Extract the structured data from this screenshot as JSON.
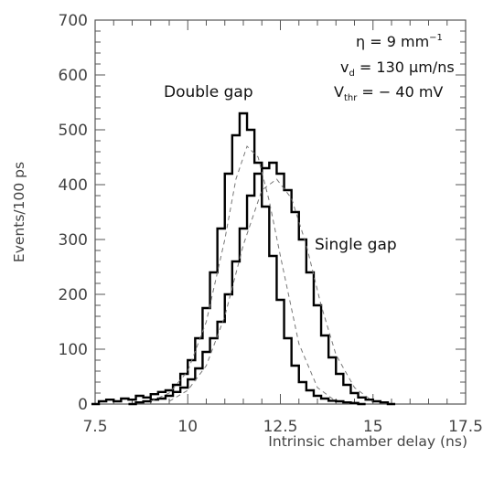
{
  "chart_data": {
    "type": "line",
    "xlabel": "Intrinsic chamber delay (ns)",
    "ylabel": "Events/100 ps",
    "xlim": [
      7.5,
      17.5
    ],
    "ylim": [
      0,
      700
    ],
    "x_ticks": [
      "7.5",
      "10",
      "12.5",
      "15",
      "17.5"
    ],
    "y_ticks": [
      "0",
      "100",
      "200",
      "300",
      "400",
      "500",
      "600",
      "700"
    ],
    "grid": false,
    "annotations": {
      "eta": "η = 9 mm",
      "eta_sup": "−1",
      "vd_main": "v",
      "vd_sub": "d",
      "vd_rest": " = 130 μm/ns",
      "vthr_main": "V",
      "vthr_sub": "thr",
      "vthr_rest": " = − 40 mV"
    },
    "series": [
      {
        "name": "Double gap",
        "style": "histogram",
        "x": [
          7.5,
          7.7,
          7.9,
          8.1,
          8.3,
          8.5,
          8.7,
          8.9,
          9.1,
          9.3,
          9.5,
          9.7,
          9.9,
          10.1,
          10.3,
          10.5,
          10.7,
          10.9,
          11.1,
          11.3,
          11.5,
          11.7,
          11.9,
          12.1,
          12.3,
          12.5,
          12.7,
          12.9,
          13.1,
          13.3,
          13.5,
          13.7,
          13.9,
          14.1,
          14.3,
          14.5,
          14.7
        ],
        "values": [
          0,
          5,
          8,
          5,
          10,
          8,
          15,
          12,
          18,
          22,
          25,
          35,
          55,
          80,
          120,
          175,
          240,
          320,
          420,
          490,
          530,
          500,
          440,
          360,
          270,
          190,
          120,
          70,
          40,
          25,
          15,
          10,
          6,
          5,
          3,
          2,
          0
        ]
      },
      {
        "name": "Single gap",
        "style": "histogram",
        "x": [
          8.5,
          8.7,
          8.9,
          9.1,
          9.3,
          9.5,
          9.7,
          9.9,
          10.1,
          10.3,
          10.5,
          10.7,
          10.9,
          11.1,
          11.3,
          11.5,
          11.7,
          11.9,
          12.1,
          12.3,
          12.5,
          12.7,
          12.9,
          13.1,
          13.3,
          13.5,
          13.7,
          13.9,
          14.1,
          14.3,
          14.5,
          14.7,
          14.9,
          15.1,
          15.3,
          15.5
        ],
        "values": [
          0,
          3,
          5,
          8,
          10,
          15,
          22,
          30,
          45,
          65,
          95,
          120,
          150,
          200,
          260,
          320,
          380,
          420,
          430,
          440,
          420,
          390,
          350,
          300,
          240,
          180,
          125,
          85,
          55,
          35,
          20,
          12,
          8,
          5,
          3,
          0
        ]
      },
      {
        "name": "",
        "style": "dashed-fit",
        "x": [
          9.0,
          9.5,
          10.0,
          10.5,
          11.0,
          11.3,
          11.6,
          11.9,
          12.2,
          12.5,
          13.0,
          13.5,
          14.0
        ],
        "values": [
          5,
          20,
          60,
          150,
          300,
          410,
          470,
          450,
          370,
          270,
          110,
          30,
          5
        ]
      },
      {
        "name": "",
        "style": "dashed-fit",
        "x": [
          9.5,
          10.0,
          10.5,
          11.0,
          11.5,
          12.0,
          12.4,
          12.8,
          13.2,
          13.6,
          14.0,
          14.5,
          15.0
        ],
        "values": [
          5,
          25,
          70,
          160,
          290,
          390,
          410,
          375,
          290,
          180,
          90,
          30,
          5
        ]
      }
    ]
  }
}
